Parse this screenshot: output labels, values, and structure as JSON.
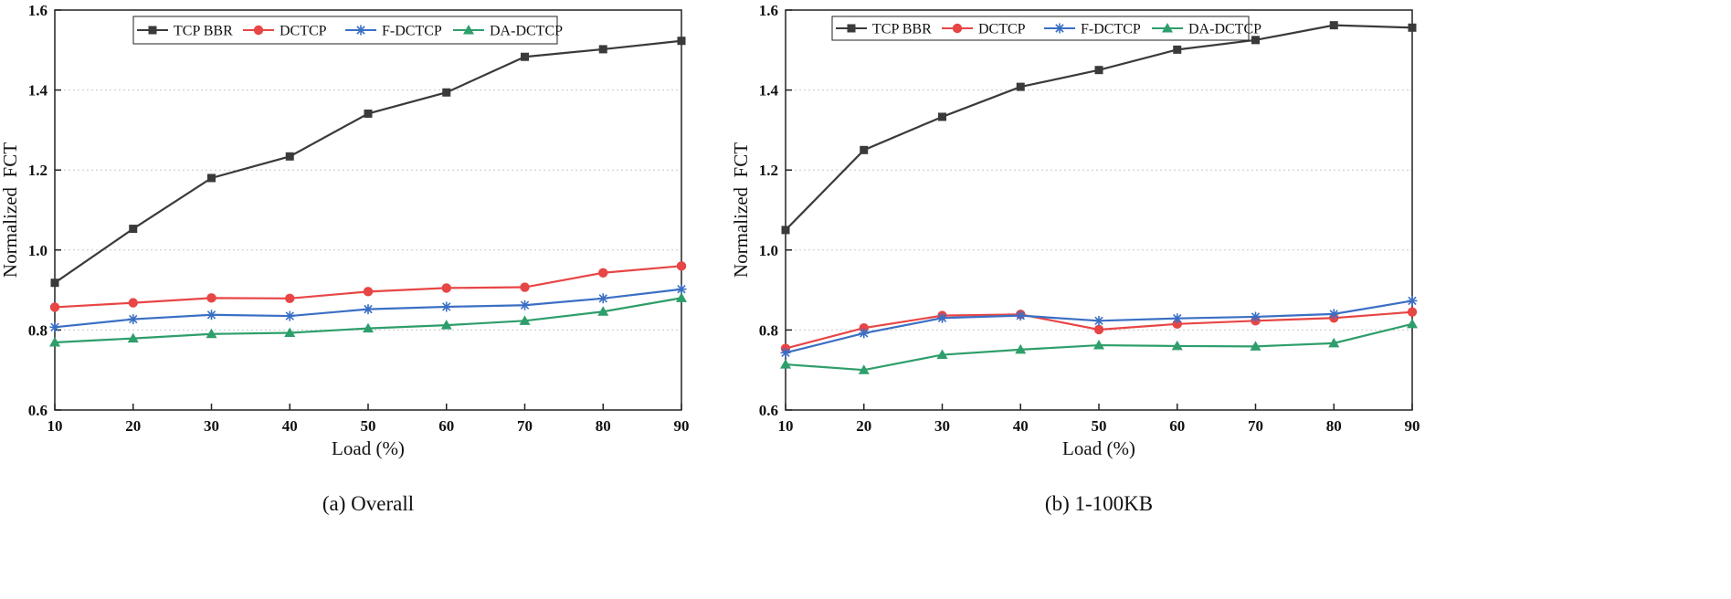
{
  "chart_data": [
    {
      "type": "line",
      "caption": "(a) Overall",
      "xlabel": "Load (%)",
      "ylabel": "Normalized  FCT",
      "x": [
        10,
        20,
        30,
        40,
        50,
        60,
        70,
        80,
        90
      ],
      "xlim": [
        10,
        90
      ],
      "ylim": [
        0.6,
        1.6
      ],
      "yticks": [
        "0.6",
        "0.8",
        "1.0",
        "1.2",
        "1.4",
        "1.6"
      ],
      "xticks": [
        "10",
        "20",
        "30",
        "40",
        "50",
        "60",
        "70",
        "80",
        "90"
      ],
      "grid": "horizontal dotted",
      "legend": "top",
      "series": [
        {
          "name": "TCP BBR",
          "color": "#3a3a3a",
          "marker": "square",
          "values": [
            0.918,
            1.053,
            1.18,
            1.234,
            1.341,
            1.394,
            1.483,
            1.502,
            1.523
          ]
        },
        {
          "name": "DCTCP",
          "color": "#e84545",
          "marker": "circle",
          "values": [
            0.857,
            0.868,
            0.88,
            0.879,
            0.896,
            0.905,
            0.907,
            0.943,
            0.96
          ]
        },
        {
          "name": "F-DCTCP",
          "color": "#3b6fc4",
          "marker": "star",
          "values": [
            0.807,
            0.827,
            0.838,
            0.835,
            0.852,
            0.858,
            0.862,
            0.879,
            0.902
          ]
        },
        {
          "name": "DA-DCTCP",
          "color": "#2e9e6b",
          "marker": "triangle",
          "values": [
            0.769,
            0.779,
            0.79,
            0.793,
            0.804,
            0.812,
            0.823,
            0.846,
            0.88
          ]
        }
      ]
    },
    {
      "type": "line",
      "caption": "(b) 1-100KB",
      "xlabel": "Load (%)",
      "ylabel": "Normalized  FCT",
      "x": [
        10,
        20,
        30,
        40,
        50,
        60,
        70,
        80,
        90
      ],
      "xlim": [
        10,
        90
      ],
      "ylim": [
        0.6,
        1.6
      ],
      "yticks": [
        "0.6",
        "0.8",
        "1.0",
        "1.2",
        "1.4",
        "1.6"
      ],
      "xticks": [
        "10",
        "20",
        "30",
        "40",
        "50",
        "60",
        "70",
        "80",
        "90"
      ],
      "grid": "horizontal dotted",
      "legend": "top",
      "series": [
        {
          "name": "TCP BBR",
          "color": "#3a3a3a",
          "marker": "square",
          "values": [
            1.05,
            1.25,
            1.333,
            1.408,
            1.45,
            1.501,
            1.525,
            1.562,
            1.556
          ]
        },
        {
          "name": "DCTCP",
          "color": "#e84545",
          "marker": "circle",
          "values": [
            0.754,
            0.805,
            0.836,
            0.839,
            0.801,
            0.815,
            0.823,
            0.83,
            0.845
          ]
        },
        {
          "name": "F-DCTCP",
          "color": "#3b6fc4",
          "marker": "star",
          "values": [
            0.743,
            0.792,
            0.83,
            0.836,
            0.823,
            0.829,
            0.833,
            0.84,
            0.873
          ]
        },
        {
          "name": "DA-DCTCP",
          "color": "#2e9e6b",
          "marker": "triangle",
          "values": [
            0.714,
            0.7,
            0.738,
            0.751,
            0.762,
            0.76,
            0.759,
            0.767,
            0.815
          ]
        }
      ]
    }
  ]
}
